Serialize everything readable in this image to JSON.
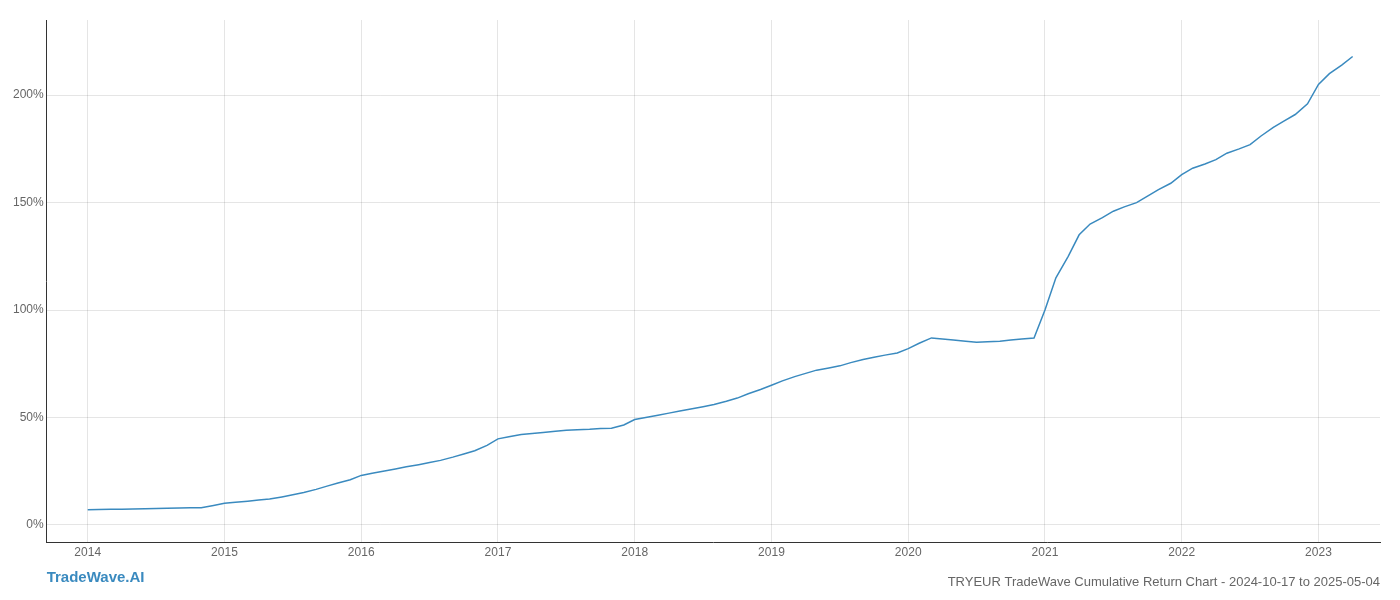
{
  "chart_data": {
    "type": "line",
    "title": "TRYEUR TradeWave Cumulative Return Chart - 2024-10-17 to 2025-05-04",
    "annotations": [
      "TradeWave.AI"
    ],
    "color": "#3a8abf",
    "x": [
      2014.0,
      2014.08,
      2014.17,
      2014.25,
      2014.33,
      2014.42,
      2014.5,
      2014.58,
      2014.67,
      2014.75,
      2014.83,
      2014.92,
      2015.0,
      2015.08,
      2015.17,
      2015.25,
      2015.33,
      2015.42,
      2015.5,
      2015.58,
      2015.67,
      2015.75,
      2015.83,
      2015.92,
      2016.0,
      2016.08,
      2016.17,
      2016.25,
      2016.33,
      2016.42,
      2016.5,
      2016.58,
      2016.67,
      2016.75,
      2016.83,
      2016.92,
      2017.0,
      2017.08,
      2017.17,
      2017.25,
      2017.33,
      2017.42,
      2017.5,
      2017.58,
      2017.67,
      2017.75,
      2017.83,
      2017.92,
      2018.0,
      2018.08,
      2018.17,
      2018.25,
      2018.33,
      2018.42,
      2018.5,
      2018.58,
      2018.67,
      2018.75,
      2018.83,
      2018.92,
      2019.0,
      2019.08,
      2019.17,
      2019.25,
      2019.33,
      2019.42,
      2019.5,
      2019.58,
      2019.67,
      2019.75,
      2019.83,
      2019.92,
      2020.0,
      2020.08,
      2020.17,
      2020.25,
      2020.33,
      2020.42,
      2020.5,
      2020.58,
      2020.67,
      2020.75,
      2020.83,
      2020.92,
      2021.0,
      2021.08,
      2021.17,
      2021.25,
      2021.33,
      2021.42,
      2021.5,
      2021.58,
      2021.67,
      2021.75,
      2021.83,
      2021.92,
      2022.0,
      2022.08,
      2022.17,
      2022.25,
      2022.33,
      2022.42,
      2022.5,
      2022.58,
      2022.67,
      2022.75,
      2022.83,
      2022.92,
      2023.0,
      2023.08,
      2023.17,
      2023.25
    ],
    "values": [
      7.0,
      7.1,
      7.2,
      7.3,
      7.4,
      7.5,
      7.6,
      7.7,
      7.8,
      7.9,
      8.0,
      9.0,
      10.0,
      10.5,
      11.0,
      11.5,
      12.0,
      13.0,
      14.0,
      15.0,
      16.5,
      18.0,
      19.5,
      21.0,
      23.0,
      24.0,
      25.0,
      26.0,
      27.0,
      28.0,
      29.0,
      30.0,
      31.5,
      33.0,
      34.5,
      37.0,
      40.0,
      41.0,
      42.0,
      42.5,
      43.0,
      43.5,
      44.0,
      44.3,
      44.5,
      44.8,
      45.0,
      46.5,
      49.0,
      50.0,
      51.0,
      52.0,
      53.0,
      54.0,
      55.0,
      56.0,
      57.5,
      59.0,
      61.0,
      63.0,
      65.0,
      67.0,
      69.0,
      70.5,
      72.0,
      73.0,
      74.0,
      75.5,
      77.0,
      78.0,
      79.0,
      80.0,
      82.0,
      84.5,
      87.0,
      86.5,
      86.0,
      85.5,
      85.0,
      85.2,
      85.5,
      86.0,
      86.5,
      87.0,
      100.0,
      115.0,
      125.0,
      135.0,
      140.0,
      143.0,
      146.0,
      148.0,
      150.0,
      153.0,
      156.0,
      159.0,
      163.0,
      166.0,
      168.0,
      170.0,
      173.0,
      175.0,
      177.0,
      181.0,
      185.0,
      188.0,
      191.0,
      196.0,
      205.0,
      210.0,
      214.0,
      218.0
    ],
    "xlim": [
      2013.7,
      2023.45
    ],
    "ylim": [
      -8,
      235
    ],
    "xticks": [
      2014,
      2015,
      2016,
      2017,
      2018,
      2019,
      2020,
      2021,
      2022,
      2023
    ],
    "yticks": [
      {
        "value": 0,
        "label": "0%"
      },
      {
        "value": 50,
        "label": "50%"
      },
      {
        "value": 100,
        "label": "100%"
      },
      {
        "value": 150,
        "label": "150%"
      },
      {
        "value": 200,
        "label": "200%"
      }
    ],
    "grid": true
  }
}
